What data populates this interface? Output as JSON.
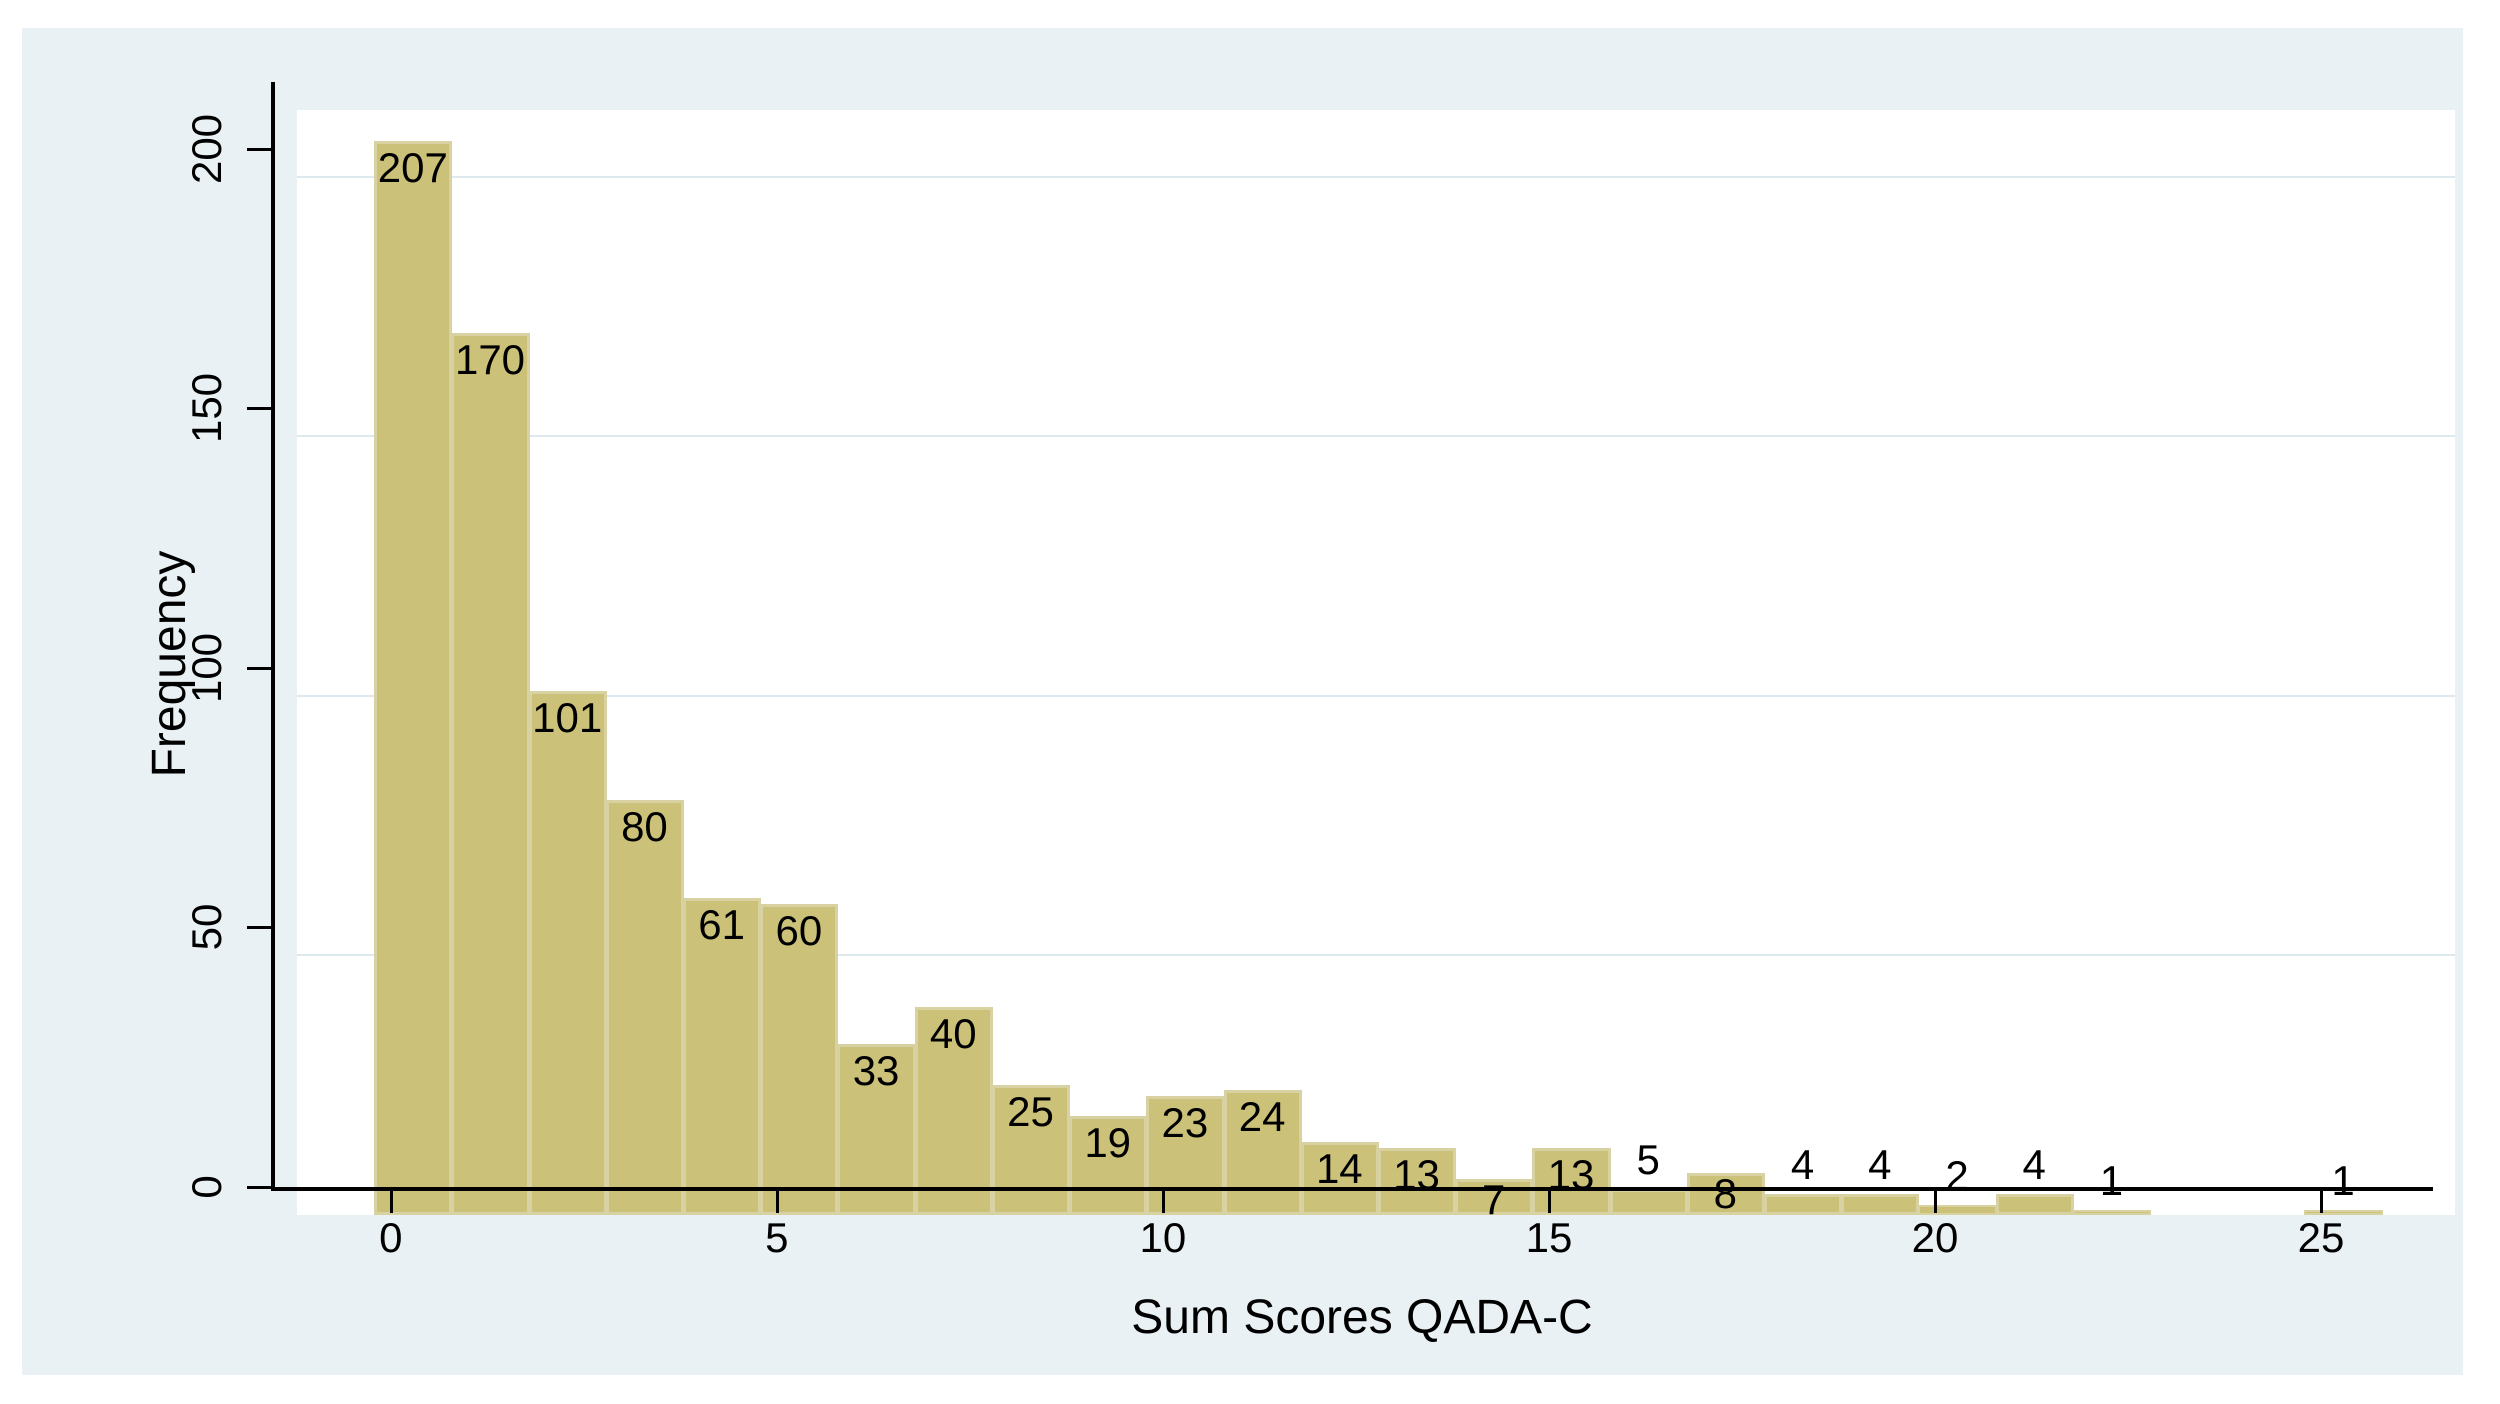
{
  "chart_data": {
    "type": "bar",
    "subtype": "histogram",
    "title": "",
    "xlabel": "Sum Scores QADA-C",
    "ylabel": "Frequency",
    "x_ticks": [
      0,
      5,
      10,
      15,
      20,
      25
    ],
    "y_ticks": [
      0,
      50,
      100,
      150,
      200
    ],
    "xlim": [
      -1.5,
      26.45
    ],
    "ylim": [
      0,
      212.9
    ],
    "grid": "horizontal gridlines at y ticks",
    "legend": "none",
    "bar_labels_shown": true,
    "categories": [
      0,
      1,
      2,
      3,
      4,
      5,
      6,
      7,
      8,
      9,
      10,
      11,
      12,
      13,
      14,
      15,
      16,
      17,
      18,
      19,
      20,
      21,
      22,
      25
    ],
    "values": [
      207,
      170,
      101,
      80,
      61,
      60,
      33,
      40,
      25,
      19,
      23,
      24,
      14,
      13,
      7,
      13,
      5,
      8,
      4,
      4,
      2,
      4,
      1,
      1
    ],
    "bins": [
      {
        "x": 0,
        "count": 207
      },
      {
        "x": 1,
        "count": 170
      },
      {
        "x": 2,
        "count": 101
      },
      {
        "x": 3,
        "count": 80
      },
      {
        "x": 4,
        "count": 61
      },
      {
        "x": 5,
        "count": 60
      },
      {
        "x": 6,
        "count": 33
      },
      {
        "x": 7,
        "count": 40
      },
      {
        "x": 8,
        "count": 25
      },
      {
        "x": 9,
        "count": 19
      },
      {
        "x": 10,
        "count": 23
      },
      {
        "x": 11,
        "count": 24
      },
      {
        "x": 12,
        "count": 14
      },
      {
        "x": 13,
        "count": 13
      },
      {
        "x": 14,
        "count": 7
      },
      {
        "x": 15,
        "count": 13
      },
      {
        "x": 16,
        "count": 5
      },
      {
        "x": 17,
        "count": 8
      },
      {
        "x": 18,
        "count": 4
      },
      {
        "x": 19,
        "count": 4
      },
      {
        "x": 20,
        "count": 2
      },
      {
        "x": 21,
        "count": 4
      },
      {
        "x": 22,
        "count": 1
      },
      {
        "x": 25,
        "count": 1
      }
    ],
    "colors": {
      "figure_bg": "#ffffff",
      "panel_bg": "#e9f1f4",
      "plot_bg": "#ffffff",
      "grid": "#dde9ef",
      "bar_fill": "#cbc178",
      "bar_edge": "#d8d2a2",
      "axis": "#000000",
      "text": "#000000"
    }
  }
}
